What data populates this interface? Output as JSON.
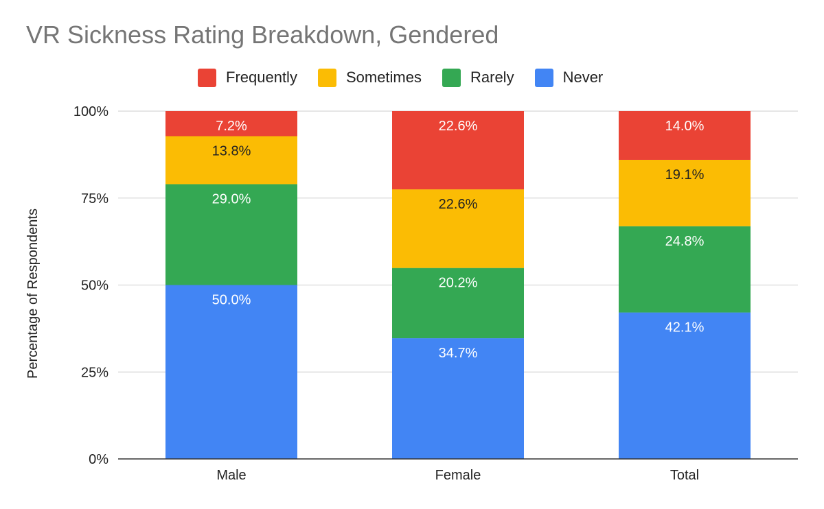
{
  "chart_data": {
    "type": "bar",
    "stacked": true,
    "title": "VR Sickness Rating Breakdown, Gendered",
    "ylabel": "Percentage of Respondents",
    "xlabel": "",
    "categories": [
      "Male",
      "Female",
      "Total"
    ],
    "ylim": [
      0,
      100
    ],
    "yticks": [
      "0%",
      "25%",
      "50%",
      "75%",
      "100%"
    ],
    "ytick_values": [
      0,
      25,
      50,
      75,
      100
    ],
    "legend_position": "top",
    "grid": true,
    "series": [
      {
        "name": "Never",
        "color": "#4285f4",
        "values": [
          50.0,
          34.7,
          42.1
        ],
        "labels": [
          "50.0%",
          "34.7%",
          "42.1%"
        ],
        "label_color": "#ffffff"
      },
      {
        "name": "Rarely",
        "color": "#34a853",
        "values": [
          29.0,
          20.2,
          24.8
        ],
        "labels": [
          "29.0%",
          "20.2%",
          "24.8%"
        ],
        "label_color": "#ffffff"
      },
      {
        "name": "Sometimes",
        "color": "#fbbc04",
        "values": [
          13.8,
          22.6,
          19.1
        ],
        "labels": [
          "13.8%",
          "22.6%",
          "19.1%"
        ],
        "label_color": "#222222"
      },
      {
        "name": "Frequently",
        "color": "#ea4335",
        "values": [
          7.2,
          22.6,
          14.0
        ],
        "labels": [
          "7.2%",
          "22.6%",
          "14.0%"
        ],
        "label_color": "#ffffff"
      }
    ],
    "legend_order": [
      "Frequently",
      "Sometimes",
      "Rarely",
      "Never"
    ]
  }
}
